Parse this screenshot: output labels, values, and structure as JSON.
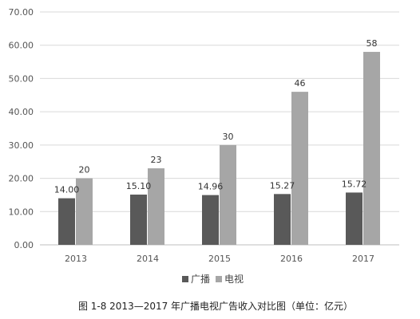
{
  "chart_data": {
    "type": "bar",
    "categories": [
      "2013",
      "2014",
      "2015",
      "2016",
      "2017"
    ],
    "series": [
      {
        "name": "广播",
        "values": [
          14.0,
          15.1,
          14.96,
          15.27,
          15.72
        ],
        "labels": [
          "14.00",
          "15.10",
          "14.96",
          "15.27",
          "15.72"
        ],
        "color": "#595959"
      },
      {
        "name": "电视",
        "values": [
          20,
          23,
          30,
          46,
          58
        ],
        "labels": [
          "20",
          "23",
          "30",
          "46",
          "58"
        ],
        "color": "#a6a6a6"
      }
    ],
    "ylim": [
      0,
      70
    ],
    "yticks": [
      "0.00",
      "10.00",
      "20.00",
      "30.00",
      "40.00",
      "50.00",
      "60.00",
      "70.00"
    ],
    "grid": true,
    "legend": "bottom",
    "caption": "图 1-8  2013—2017 年广播电视广告收入对比图（单位：亿元）"
  }
}
